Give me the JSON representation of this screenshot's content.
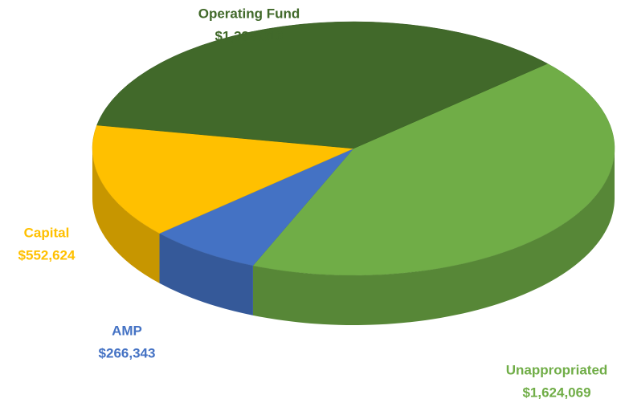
{
  "chart_data": {
    "type": "pie",
    "categories": [
      "Unappropriated",
      "AMP",
      "Capital",
      "Operating Fund"
    ],
    "values": [
      1624069,
      266343,
      552624,
      1338016
    ],
    "value_labels": [
      "$1,624,069",
      "$266,343",
      "$552,624",
      "$1,338,016"
    ],
    "colors": [
      "#70ad47",
      "#4472c4",
      "#ffc000",
      "#41692a"
    ]
  }
}
